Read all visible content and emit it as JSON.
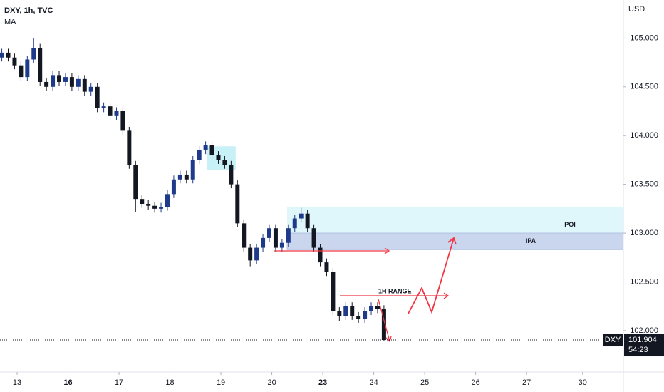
{
  "chart_data": {
    "type": "candlestick",
    "title": "DXY, 1h, TVC",
    "indicator": "MA",
    "currency": "USD",
    "symbol": "DXY",
    "last_price": 101.904,
    "countdown": "54:23",
    "up_color": "#1e3a8a",
    "down_color": "#131722",
    "grid": false,
    "x": [
      -0.3,
      -0.175,
      -0.05,
      0.075,
      0.2,
      0.325,
      0.45,
      0.575,
      0.7,
      0.825,
      0.95,
      1.075,
      1.2,
      1.325,
      1.45,
      1.575,
      1.7,
      1.825,
      1.95,
      2.075,
      2.2,
      2.325,
      2.45,
      2.575,
      2.7,
      2.825,
      2.95,
      3.075,
      3.2,
      3.325,
      3.45,
      3.575,
      3.7,
      3.825,
      3.95,
      4.075,
      4.2,
      4.325,
      4.45,
      4.575,
      4.7,
      4.825,
      4.95,
      5.075,
      5.2,
      5.325,
      5.45,
      5.575,
      5.7,
      5.825,
      5.95,
      6.075,
      6.2,
      6.325,
      6.45,
      6.575,
      6.7,
      6.825,
      6.95,
      7.075,
      7.2
    ],
    "open": [
      104.8,
      104.85,
      104.8,
      104.72,
      104.6,
      104.78,
      104.9,
      104.55,
      104.5,
      104.62,
      104.55,
      104.6,
      104.5,
      104.58,
      104.45,
      104.5,
      104.28,
      104.3,
      104.2,
      104.25,
      104.05,
      103.7,
      103.35,
      103.3,
      103.28,
      103.25,
      103.27,
      103.4,
      103.55,
      103.6,
      103.55,
      103.75,
      103.85,
      103.9,
      103.8,
      103.75,
      103.7,
      103.5,
      103.1,
      102.85,
      102.72,
      102.85,
      102.95,
      103.05,
      102.85,
      102.9,
      103.05,
      103.15,
      103.2,
      103.05,
      102.85,
      102.7,
      102.6,
      102.2,
      102.15,
      102.25,
      102.15,
      102.12,
      102.2,
      102.25,
      102.22
    ],
    "high": [
      104.89,
      104.89,
      104.84,
      104.76,
      104.82,
      105.0,
      104.94,
      104.59,
      104.66,
      104.66,
      104.64,
      104.64,
      104.62,
      104.62,
      104.54,
      104.54,
      104.34,
      104.34,
      104.29,
      104.29,
      104.09,
      103.74,
      103.39,
      103.34,
      103.32,
      103.31,
      103.44,
      103.59,
      103.64,
      103.64,
      103.79,
      103.89,
      103.94,
      103.94,
      103.84,
      103.79,
      103.74,
      103.54,
      103.14,
      102.89,
      102.89,
      102.99,
      103.09,
      103.09,
      102.94,
      103.09,
      103.19,
      103.26,
      103.24,
      103.09,
      102.89,
      102.74,
      102.64,
      102.24,
      102.29,
      102.29,
      102.19,
      102.24,
      102.29,
      102.29,
      102.26
    ],
    "low": [
      104.76,
      104.76,
      104.68,
      104.56,
      104.56,
      104.74,
      104.51,
      104.46,
      104.46,
      104.51,
      104.51,
      104.46,
      104.46,
      104.41,
      104.41,
      104.24,
      104.24,
      104.16,
      104.16,
      104.01,
      103.66,
      103.22,
      103.26,
      103.24,
      103.21,
      103.21,
      103.23,
      103.36,
      103.51,
      103.51,
      103.51,
      103.71,
      103.81,
      103.76,
      103.71,
      103.66,
      103.46,
      103.06,
      102.81,
      102.66,
      102.68,
      102.81,
      102.91,
      102.81,
      102.81,
      102.86,
      103.01,
      103.11,
      103.01,
      102.81,
      102.66,
      102.56,
      102.16,
      102.1,
      102.11,
      102.11,
      102.08,
      102.08,
      102.16,
      102.18,
      101.89
    ],
    "close": [
      104.85,
      104.8,
      104.72,
      104.6,
      104.78,
      104.9,
      104.55,
      104.5,
      104.62,
      104.55,
      104.6,
      104.5,
      104.58,
      104.45,
      104.5,
      104.28,
      104.3,
      104.2,
      104.25,
      104.05,
      103.7,
      103.35,
      103.3,
      103.28,
      103.25,
      103.27,
      103.4,
      103.55,
      103.6,
      103.55,
      103.75,
      103.85,
      103.9,
      103.8,
      103.75,
      103.7,
      103.5,
      103.1,
      102.85,
      102.72,
      102.85,
      102.95,
      103.05,
      102.85,
      102.9,
      103.05,
      103.15,
      103.2,
      103.05,
      102.85,
      102.7,
      102.6,
      102.2,
      102.15,
      102.25,
      102.15,
      102.12,
      102.2,
      102.25,
      102.22,
      101.904
    ],
    "xlim": [
      -0.336,
      11.9
    ],
    "xticks": [
      {
        "value": 0,
        "label": "13"
      },
      {
        "value": 1,
        "label": "16"
      },
      {
        "value": 2,
        "label": "17"
      },
      {
        "value": 3,
        "label": "18"
      },
      {
        "value": 4,
        "label": "19"
      },
      {
        "value": 5,
        "label": "20"
      },
      {
        "value": 6,
        "label": "23"
      },
      {
        "value": 7,
        "label": "24"
      },
      {
        "value": 8,
        "label": "25"
      },
      {
        "value": 9,
        "label": "26"
      },
      {
        "value": 10,
        "label": "27"
      },
      {
        "value": 11.1,
        "label": "30"
      }
    ],
    "ylim": [
      101.59,
      105.39
    ],
    "yticks": [
      {
        "value": 102,
        "label": "102.000"
      },
      {
        "value": 102.5,
        "label": "102.500"
      },
      {
        "value": 103,
        "label": "103.000"
      },
      {
        "value": 103.5,
        "label": "103.500"
      },
      {
        "value": 104,
        "label": "104.000"
      },
      {
        "value": 104.5,
        "label": "104.500"
      },
      {
        "value": 105,
        "label": "105.000"
      }
    ],
    "zones": [
      {
        "x": [
          3.72,
          4.29
        ],
        "y": [
          103.65,
          103.89
        ],
        "color": "#c8f0f7"
      },
      {
        "label": "POI",
        "x": [
          5.3,
          11.9
        ],
        "y": [
          103.0,
          103.27
        ],
        "color": "#dff6fb"
      },
      {
        "label": "IPA",
        "x": [
          5.3,
          11.9
        ],
        "y": [
          102.83,
          103.0
        ],
        "color": "#c9d6ee"
      }
    ],
    "range_label": "1H RANGE"
  }
}
